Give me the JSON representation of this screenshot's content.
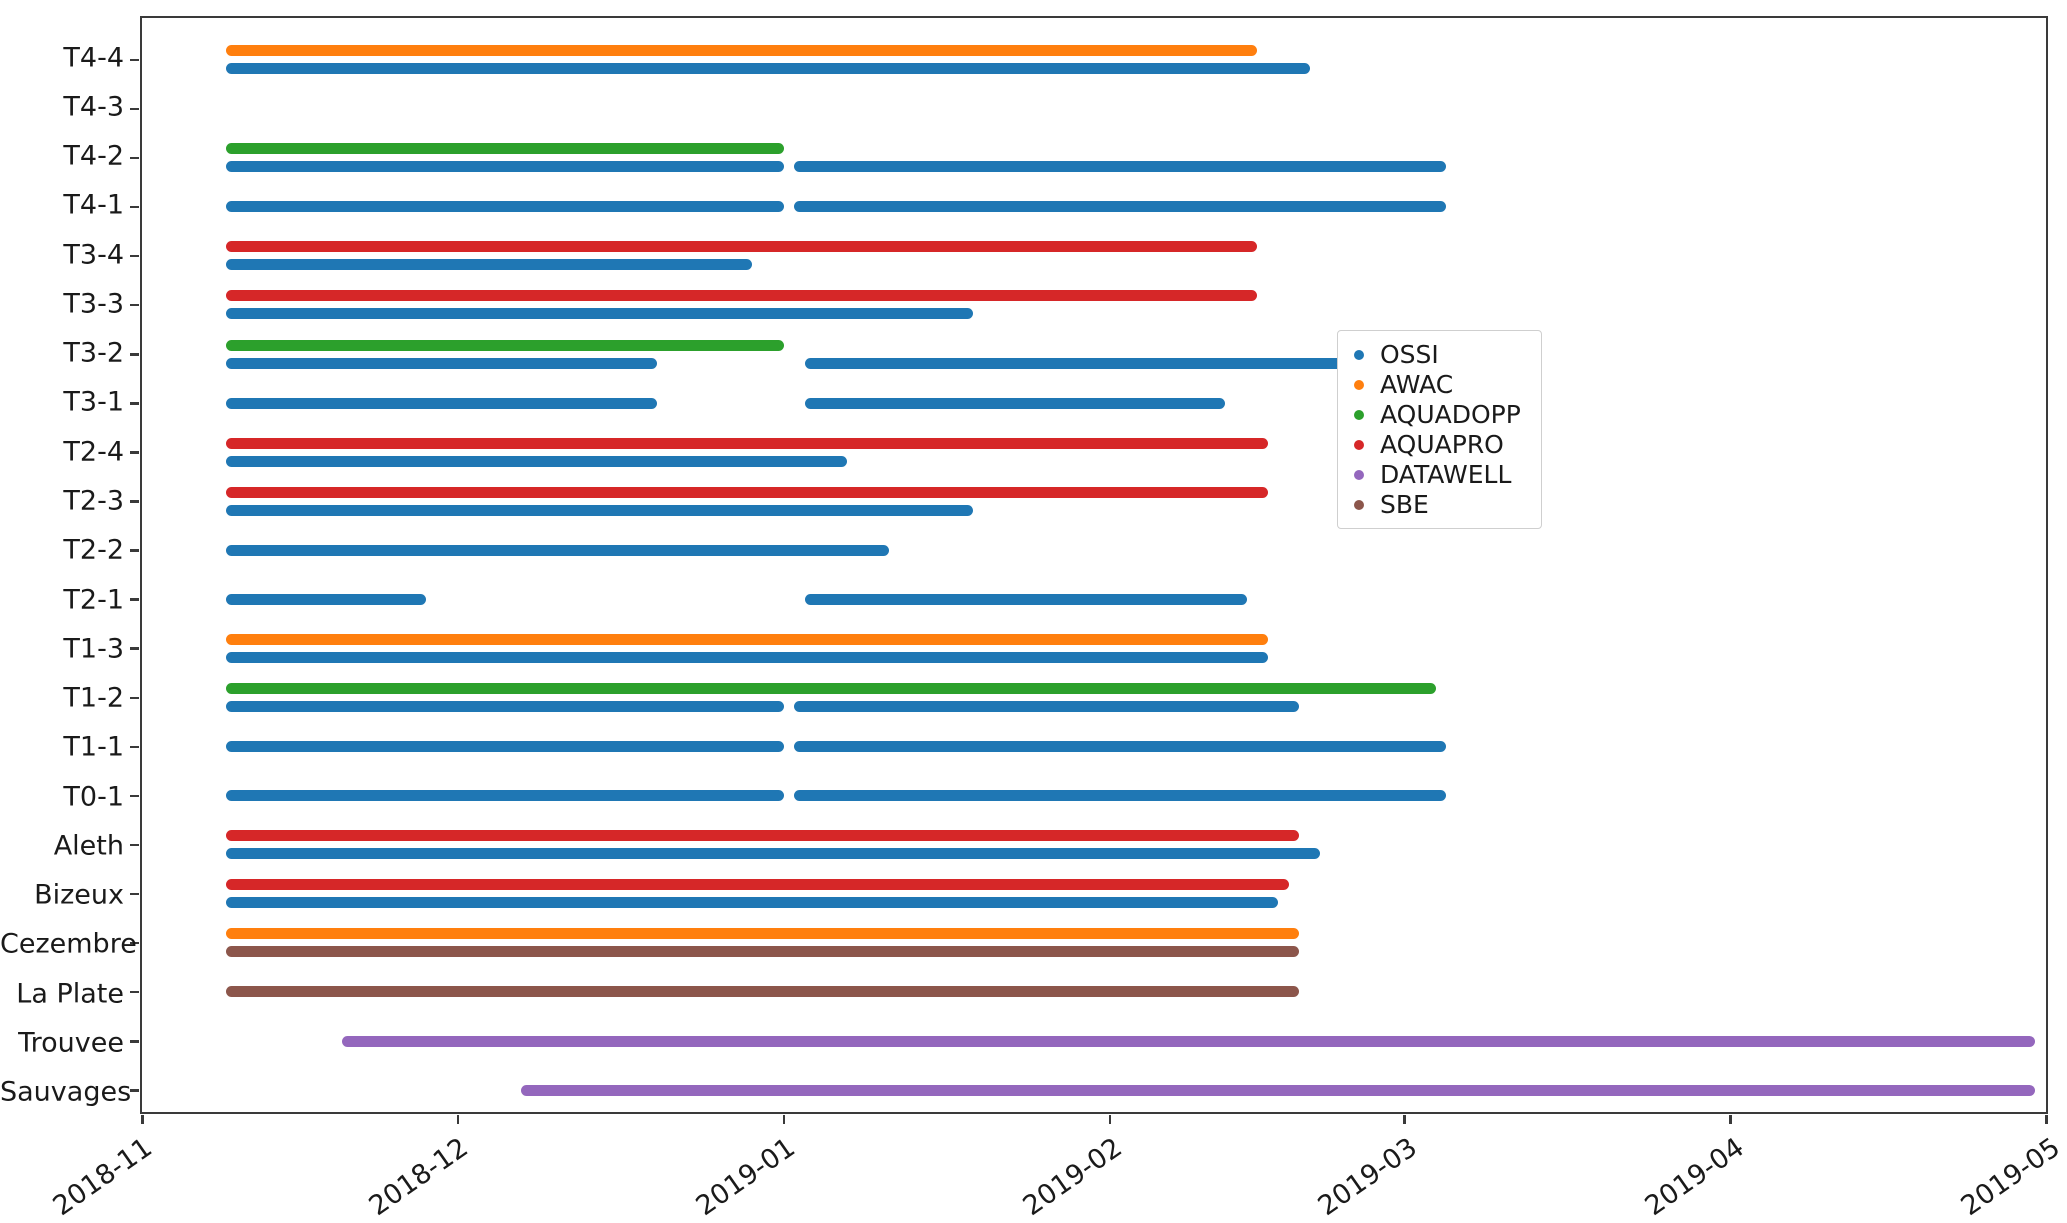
{
  "chart_data": {
    "type": "gantt",
    "title": "",
    "xlabel": "",
    "ylabel": "",
    "grid": false,
    "background": "#ffffff",
    "x_axis": {
      "min": "2018-11-01",
      "max": "2019-05-01",
      "ticks": [
        {
          "label": "2018-11",
          "date": "2018-11-01"
        },
        {
          "label": "2018-12",
          "date": "2018-12-01"
        },
        {
          "label": "2019-01",
          "date": "2019-01-01"
        },
        {
          "label": "2019-02",
          "date": "2019-02-01"
        },
        {
          "label": "2019-03",
          "date": "2019-03-01"
        },
        {
          "label": "2019-04",
          "date": "2019-04-01"
        },
        {
          "label": "2019-05",
          "date": "2019-05-01"
        }
      ]
    },
    "series_colors": {
      "OSSI": "#1f77b4",
      "AWAC": "#ff7f0e",
      "AQUADOPP": "#2ca02c",
      "AQUAPRO": "#d62728",
      "DATAWELL": "#9467bd",
      "SBE": "#8c564b"
    },
    "legend": {
      "position": "center-right",
      "entries": [
        {
          "label": "OSSI",
          "color": "#1f77b4"
        },
        {
          "label": "AWAC",
          "color": "#ff7f0e"
        },
        {
          "label": "AQUADOPP",
          "color": "#2ca02c"
        },
        {
          "label": "AQUAPRO",
          "color": "#d62728"
        },
        {
          "label": "DATAWELL",
          "color": "#9467bd"
        },
        {
          "label": "SBE",
          "color": "#8c564b"
        }
      ]
    },
    "rows": [
      {
        "label": "T4-4",
        "bars": [
          {
            "series": "AWAC",
            "start": "2018-11-09",
            "end": "2019-02-15",
            "lane": 0
          },
          {
            "series": "OSSI",
            "start": "2018-11-09",
            "end": "2019-02-20",
            "lane": 1
          }
        ]
      },
      {
        "label": "T4-3",
        "bars": []
      },
      {
        "label": "T4-2",
        "bars": [
          {
            "series": "AQUADOPP",
            "start": "2018-11-09",
            "end": "2019-01-01",
            "lane": 0
          },
          {
            "series": "OSSI",
            "start": "2018-11-09",
            "end": "2019-01-01",
            "lane": 1
          },
          {
            "series": "OSSI",
            "start": "2019-01-02",
            "end": "2019-03-05",
            "lane": 1
          }
        ]
      },
      {
        "label": "T4-1",
        "bars": [
          {
            "series": "OSSI",
            "start": "2018-11-09",
            "end": "2019-01-01",
            "lane": 0
          },
          {
            "series": "OSSI",
            "start": "2019-01-02",
            "end": "2019-03-05",
            "lane": 0
          }
        ]
      },
      {
        "label": "T3-4",
        "bars": [
          {
            "series": "AQUAPRO",
            "start": "2018-11-09",
            "end": "2019-02-15",
            "lane": 0
          },
          {
            "series": "OSSI",
            "start": "2018-11-09",
            "end": "2018-12-29",
            "lane": 1
          }
        ]
      },
      {
        "label": "T3-3",
        "bars": [
          {
            "series": "AQUAPRO",
            "start": "2018-11-09",
            "end": "2019-02-15",
            "lane": 0
          },
          {
            "series": "OSSI",
            "start": "2018-11-09",
            "end": "2019-01-19",
            "lane": 1
          }
        ]
      },
      {
        "label": "T3-2",
        "bars": [
          {
            "series": "AQUADOPP",
            "start": "2018-11-09",
            "end": "2019-01-01",
            "lane": 0
          },
          {
            "series": "OSSI",
            "start": "2018-11-09",
            "end": "2018-12-20",
            "lane": 1
          },
          {
            "series": "OSSI",
            "start": "2019-01-03",
            "end": "2019-03-04",
            "lane": 1
          }
        ]
      },
      {
        "label": "T3-1",
        "bars": [
          {
            "series": "OSSI",
            "start": "2018-11-09",
            "end": "2018-12-20",
            "lane": 0
          },
          {
            "series": "OSSI",
            "start": "2019-01-03",
            "end": "2019-02-12",
            "lane": 0
          }
        ]
      },
      {
        "label": "T2-4",
        "bars": [
          {
            "series": "AQUAPRO",
            "start": "2018-11-09",
            "end": "2019-02-16",
            "lane": 0
          },
          {
            "series": "OSSI",
            "start": "2018-11-09",
            "end": "2019-01-07",
            "lane": 1
          }
        ]
      },
      {
        "label": "T2-3",
        "bars": [
          {
            "series": "AQUAPRO",
            "start": "2018-11-09",
            "end": "2019-02-16",
            "lane": 0
          },
          {
            "series": "OSSI",
            "start": "2018-11-09",
            "end": "2019-01-19",
            "lane": 1
          }
        ]
      },
      {
        "label": "T2-2",
        "bars": [
          {
            "series": "OSSI",
            "start": "2018-11-09",
            "end": "2019-01-11",
            "lane": 0
          }
        ]
      },
      {
        "label": "T2-1",
        "bars": [
          {
            "series": "OSSI",
            "start": "2018-11-09",
            "end": "2018-11-28",
            "lane": 0
          },
          {
            "series": "OSSI",
            "start": "2019-01-03",
            "end": "2019-02-14",
            "lane": 0
          }
        ]
      },
      {
        "label": "T1-3",
        "bars": [
          {
            "series": "AWAC",
            "start": "2018-11-09",
            "end": "2019-02-16",
            "lane": 0
          },
          {
            "series": "OSSI",
            "start": "2018-11-09",
            "end": "2019-02-16",
            "lane": 1
          }
        ]
      },
      {
        "label": "T1-2",
        "bars": [
          {
            "series": "AQUADOPP",
            "start": "2018-11-09",
            "end": "2019-03-04",
            "lane": 0
          },
          {
            "series": "OSSI",
            "start": "2018-11-09",
            "end": "2019-01-01",
            "lane": 1
          },
          {
            "series": "OSSI",
            "start": "2019-01-02",
            "end": "2019-02-19",
            "lane": 1
          }
        ]
      },
      {
        "label": "T1-1",
        "bars": [
          {
            "series": "OSSI",
            "start": "2018-11-09",
            "end": "2019-01-01",
            "lane": 0
          },
          {
            "series": "OSSI",
            "start": "2019-01-02",
            "end": "2019-03-05",
            "lane": 0
          }
        ]
      },
      {
        "label": "T0-1",
        "bars": [
          {
            "series": "OSSI",
            "start": "2018-11-09",
            "end": "2019-01-01",
            "lane": 0
          },
          {
            "series": "OSSI",
            "start": "2019-01-02",
            "end": "2019-03-05",
            "lane": 0
          }
        ]
      },
      {
        "label": "Aleth",
        "bars": [
          {
            "series": "AQUAPRO",
            "start": "2018-11-09",
            "end": "2019-02-19",
            "lane": 0
          },
          {
            "series": "OSSI",
            "start": "2018-11-09",
            "end": "2019-02-21",
            "lane": 1
          }
        ]
      },
      {
        "label": "Bizeux",
        "bars": [
          {
            "series": "AQUAPRO",
            "start": "2018-11-09",
            "end": "2019-02-18",
            "lane": 0
          },
          {
            "series": "OSSI",
            "start": "2018-11-09",
            "end": "2019-02-17",
            "lane": 1
          }
        ]
      },
      {
        "label": "Cezembre",
        "bars": [
          {
            "series": "AWAC",
            "start": "2018-11-09",
            "end": "2019-02-19",
            "lane": 0
          },
          {
            "series": "SBE",
            "start": "2018-11-09",
            "end": "2019-02-19",
            "lane": 1
          }
        ]
      },
      {
        "label": "La Plate",
        "bars": [
          {
            "series": "SBE",
            "start": "2018-11-09",
            "end": "2019-02-19",
            "lane": 0
          }
        ]
      },
      {
        "label": "Trouvee",
        "bars": [
          {
            "series": "DATAWELL",
            "start": "2018-11-20",
            "end": "2019-04-30",
            "lane": 0
          }
        ]
      },
      {
        "label": "Sauvages",
        "bars": [
          {
            "series": "DATAWELL",
            "start": "2018-12-07",
            "end": "2019-04-30",
            "lane": 0
          }
        ]
      }
    ]
  }
}
